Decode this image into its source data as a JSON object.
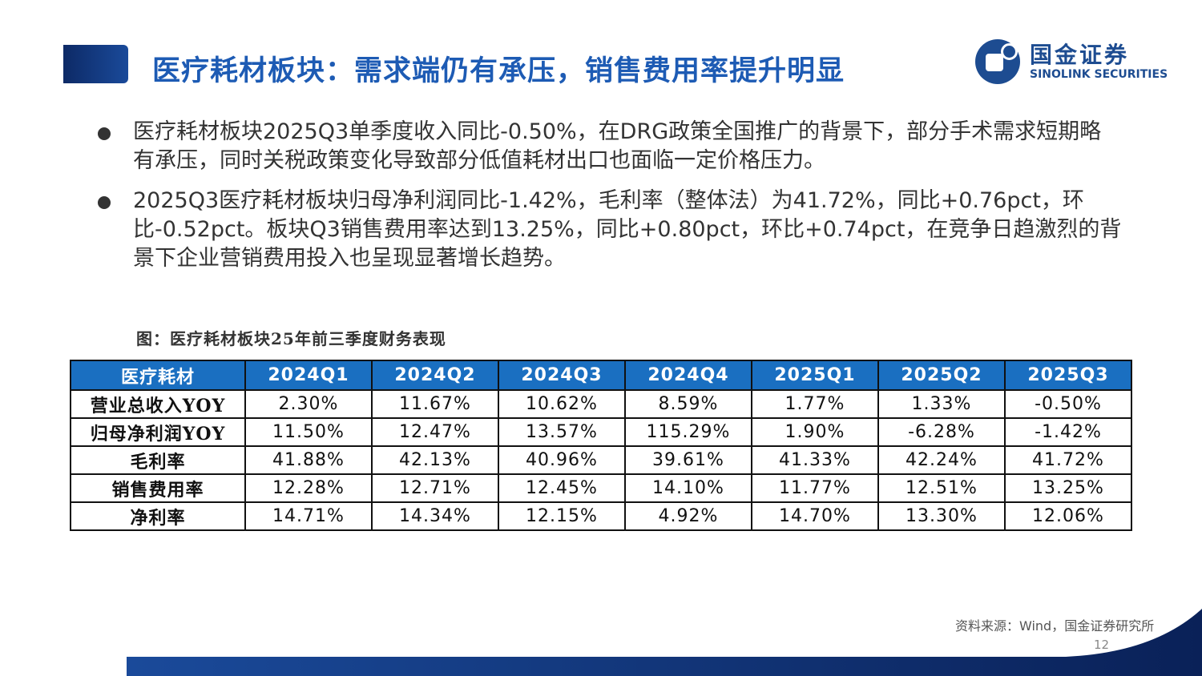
{
  "header": {
    "title": "医疗耗材板块：需求端仍有承压，销售费用率提升明显",
    "logo_cn": "国金证券",
    "logo_en": "SINOLINK SECURITIES",
    "brand_color": "#1d4c91",
    "title_color": "#1d5bb4"
  },
  "bullets": [
    "医疗耗材板块2025Q3单季度收入同比-0.50%，在DRG政策全国推广的背景下，部分手术需求短期略有承压，同时关税政策变化导致部分低值耗材出口也面临一定价格压力。",
    "2025Q3医疗耗材板块归母净利润同比-1.42%，毛利率（整体法）为41.72%，同比+0.76pct，环比-0.52pct。板块Q3销售费用率达到13.25%，同比+0.80pct，环比+0.74pct，在竞争日趋激烈的背景下企业营销费用投入也呈现显著增长趋势。"
  ],
  "table": {
    "caption": "图：医疗耗材板块25年前三季度财务表现",
    "corner": "医疗耗材",
    "columns": [
      "2024Q1",
      "2024Q2",
      "2024Q3",
      "2024Q4",
      "2025Q1",
      "2025Q2",
      "2025Q3"
    ],
    "rows": [
      {
        "label": "营业总收入YOY",
        "values": [
          "2.30%",
          "11.67%",
          "10.62%",
          "8.59%",
          "1.77%",
          "1.33%",
          "-0.50%"
        ]
      },
      {
        "label": "归母净利润YOY",
        "values": [
          "11.50%",
          "12.47%",
          "13.57%",
          "115.29%",
          "1.90%",
          "-6.28%",
          "-1.42%"
        ]
      },
      {
        "label": "毛利率",
        "values": [
          "41.88%",
          "42.13%",
          "40.96%",
          "39.61%",
          "41.33%",
          "42.24%",
          "41.72%"
        ]
      },
      {
        "label": "销售费用率",
        "values": [
          "12.28%",
          "12.71%",
          "12.45%",
          "14.10%",
          "11.77%",
          "12.51%",
          "13.25%"
        ]
      },
      {
        "label": "净利率",
        "values": [
          "14.71%",
          "14.34%",
          "12.15%",
          "4.92%",
          "14.70%",
          "13.30%",
          "12.06%"
        ]
      }
    ],
    "header_color": "#1a6fc1"
  },
  "footer": {
    "source": "资料来源：Wind，国金证券研究所",
    "page": "12"
  }
}
